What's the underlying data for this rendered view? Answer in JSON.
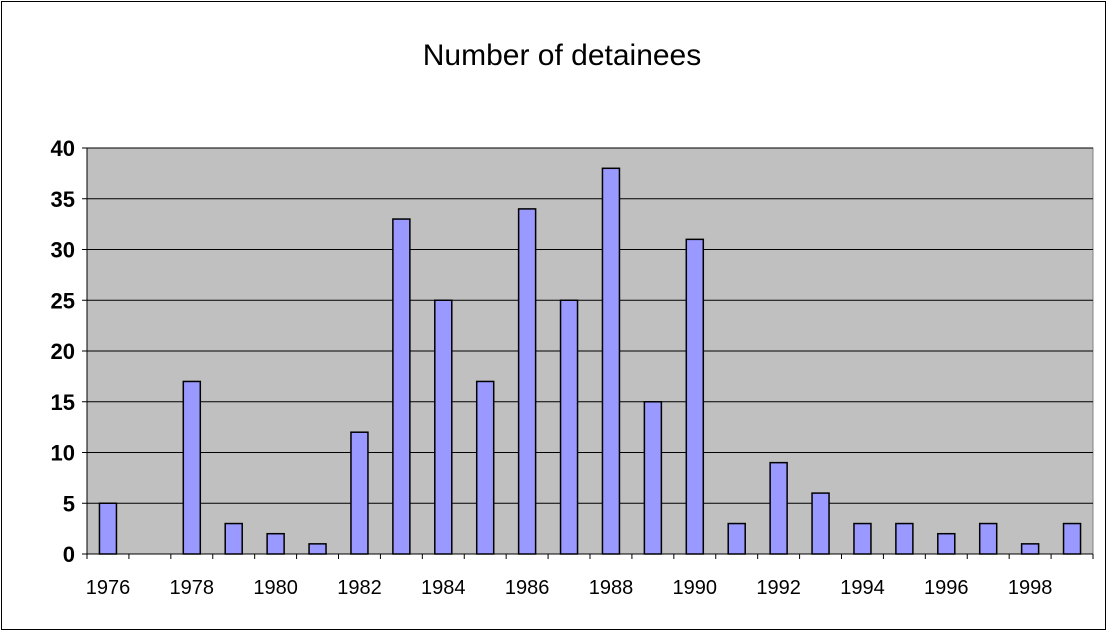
{
  "chart_data": {
    "type": "bar",
    "title": "Number of detainees",
    "xlabel": "",
    "ylabel": "",
    "categories": [
      "1976",
      "1977",
      "1978",
      "1979",
      "1980",
      "1981",
      "1982",
      "1983",
      "1984",
      "1985",
      "1986",
      "1987",
      "1988",
      "1989",
      "1990",
      "1991",
      "1992",
      "1993",
      "1994",
      "1995",
      "1996",
      "1997",
      "1998",
      "1999"
    ],
    "values": [
      5,
      0,
      17,
      3,
      2,
      1,
      12,
      33,
      25,
      17,
      34,
      25,
      38,
      15,
      31,
      3,
      9,
      6,
      3,
      3,
      2,
      3,
      1,
      3
    ],
    "x_tick_labels": [
      "1976",
      "1978",
      "1980",
      "1982",
      "1984",
      "1986",
      "1988",
      "1990",
      "1992",
      "1994",
      "1996",
      "1998"
    ],
    "y_ticks": [
      0,
      5,
      10,
      15,
      20,
      25,
      30,
      35,
      40
    ],
    "ylim": [
      0,
      40
    ],
    "grid": true,
    "legend": "none",
    "colors": {
      "bar_fill": "#9999ff",
      "bar_stroke": "#000000",
      "plot_bg": "#c0c0c0",
      "gridline": "#000000"
    }
  }
}
